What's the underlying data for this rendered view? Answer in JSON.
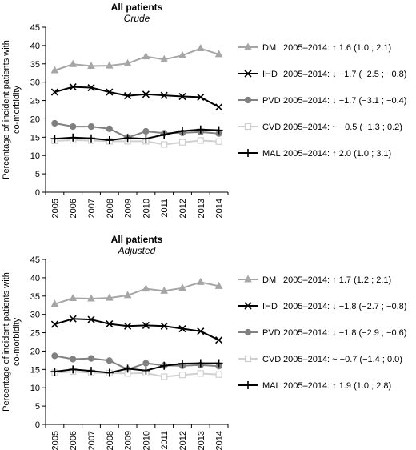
{
  "chart_data": [
    {
      "type": "line",
      "title": "All patients",
      "subtitle": "Crude",
      "ylabel_lines": [
        "Percentage of incident patients with",
        "co-morbidity"
      ],
      "x": [
        "2005",
        "2006",
        "2007",
        "2008",
        "2009",
        "2010",
        "2011",
        "2012",
        "2013",
        "2014"
      ],
      "ylim": [
        0,
        45
      ],
      "yticks": [
        "0",
        "5",
        "10",
        "15",
        "20",
        "25",
        "30",
        "35",
        "40",
        "45"
      ],
      "legend_position": "right",
      "series": [
        {
          "name": "DM",
          "trend": "2005–2014: ↑ 1.6 (1.0 ; 2.1)",
          "color": "#a6a6a6",
          "marker": "triangle",
          "values": [
            33.2,
            34.9,
            34.4,
            34.5,
            35.1,
            37.0,
            36.2,
            37.3,
            39.2,
            37.6
          ]
        },
        {
          "name": "IHD",
          "trend": "2005–2014: ↓ −1.7 (−2.5 ; −0.8)",
          "color": "#000000",
          "marker": "x",
          "values": [
            27.3,
            28.7,
            28.5,
            27.3,
            26.3,
            26.7,
            26.4,
            26.1,
            25.9,
            23.2
          ]
        },
        {
          "name": "PVD",
          "trend": "2005–2014: ↓ −1.7 (−3.1 ; −0.4)",
          "color": "#808080",
          "marker": "circle",
          "values": [
            18.8,
            17.9,
            17.9,
            17.3,
            14.9,
            16.6,
            16.1,
            16.2,
            16.4,
            16.0
          ]
        },
        {
          "name": "CVD",
          "trend": "2005–2014: ~ −0.5 (−1.3 ; 0.2)",
          "color": "#d0d0d0",
          "marker": "square",
          "values": [
            14.0,
            14.2,
            14.1,
            13.9,
            13.9,
            13.9,
            13.0,
            13.6,
            14.1,
            13.8
          ]
        },
        {
          "name": "MAL",
          "trend": "2005–2014: ↑ 2.0 (1.0 ; 3.1)",
          "color": "#000000",
          "marker": "plus",
          "values": [
            14.6,
            14.9,
            14.7,
            14.2,
            14.8,
            14.6,
            15.7,
            16.7,
            17.1,
            16.9
          ]
        }
      ]
    },
    {
      "type": "line",
      "title": "All patients",
      "subtitle": "Adjusted",
      "ylabel_lines": [
        "Percentage of incident patients with",
        "co-morbidity"
      ],
      "x": [
        "2005",
        "2006",
        "2007",
        "2008",
        "2009",
        "2010",
        "2011",
        "2012",
        "2013",
        "2014"
      ],
      "ylim": [
        0,
        45
      ],
      "yticks": [
        "0",
        "5",
        "10",
        "15",
        "20",
        "25",
        "30",
        "35",
        "40",
        "45"
      ],
      "legend_position": "right",
      "series": [
        {
          "name": "DM",
          "trend": "2005–2014: ↑ 1.7 (1.2 ; 2.1)",
          "color": "#a6a6a6",
          "marker": "triangle",
          "values": [
            32.8,
            34.4,
            34.3,
            34.5,
            35.2,
            37.0,
            36.4,
            37.2,
            38.8,
            37.7
          ]
        },
        {
          "name": "IHD",
          "trend": "2005–2014: ↓ −1.8 (−2.7 ; −0.8)",
          "color": "#000000",
          "marker": "x",
          "values": [
            27.3,
            28.8,
            28.6,
            27.4,
            26.8,
            27.0,
            26.8,
            26.1,
            25.4,
            23.0
          ]
        },
        {
          "name": "PVD",
          "trend": "2005–2014: ↓ −1.8 (−2.9 ; −0.6)",
          "color": "#808080",
          "marker": "circle",
          "values": [
            18.7,
            17.8,
            18.0,
            17.4,
            15.0,
            16.7,
            16.1,
            16.0,
            16.2,
            15.9
          ]
        },
        {
          "name": "CVD",
          "trend": "2005–2014: ~ −0.7 (−1.4 ; 0.0)",
          "color": "#d0d0d0",
          "marker": "square",
          "values": [
            14.1,
            14.4,
            14.1,
            14.0,
            13.9,
            14.0,
            13.0,
            13.5,
            13.9,
            13.6
          ]
        },
        {
          "name": "MAL",
          "trend": "2005–2014: ↑ 1.9 (1.0 ; 2.8)",
          "color": "#000000",
          "marker": "plus",
          "values": [
            14.4,
            15.0,
            14.6,
            14.1,
            15.2,
            14.7,
            16.0,
            16.6,
            16.7,
            16.7
          ]
        }
      ]
    }
  ]
}
